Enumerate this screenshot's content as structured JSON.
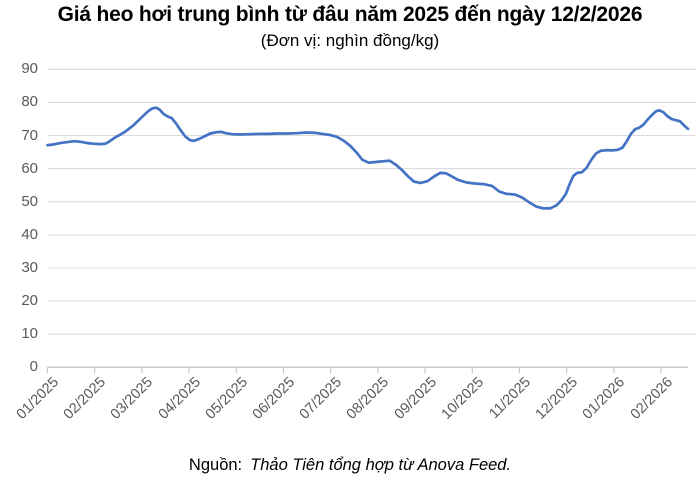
{
  "title": "Giá heo hơi trung bình từ đâu năm 2025 đến ngày 12/2/2026",
  "subtitle": "(Đơn vị: nghìn đồng/kg)",
  "source": {
    "prefix": "Nguồn:",
    "text": "Thảo Tiên tổng hợp từ Anova Feed."
  },
  "colors": {
    "line": "#4472C4",
    "grid": "#DCDCDC",
    "axis": "#C8C8C8",
    "axis_text": "#595959",
    "title_text": "#000000"
  },
  "chart_data": {
    "type": "line",
    "title": "Giá heo hơi trung bình từ đâu năm 2025 đến ngày 12/2/2026",
    "unit": "nghìn đồng/kg",
    "grid": "horizontal",
    "legend": "none",
    "ylim": [
      0,
      90
    ],
    "y_ticks": [
      0,
      10,
      20,
      30,
      40,
      50,
      60,
      70,
      80,
      90
    ],
    "x_tick_labels": [
      "01/2025",
      "02/2025",
      "03/2025",
      "04/2025",
      "05/2025",
      "06/2025",
      "07/2025",
      "08/2025",
      "09/2025",
      "10/2025",
      "11/2025",
      "12/2025",
      "01/2026",
      "02/2026"
    ],
    "x_scale_note": "x = months after the 01/2025 tick",
    "points": [
      [
        0.0,
        67.1
      ],
      [
        0.12,
        67.3
      ],
      [
        0.27,
        67.7
      ],
      [
        0.42,
        68.0
      ],
      [
        0.57,
        68.3
      ],
      [
        0.7,
        68.1
      ],
      [
        0.85,
        67.7
      ],
      [
        1.0,
        67.5
      ],
      [
        1.14,
        67.4
      ],
      [
        1.24,
        67.6
      ],
      [
        1.33,
        68.4
      ],
      [
        1.43,
        69.4
      ],
      [
        1.53,
        70.2
      ],
      [
        1.63,
        71.0
      ],
      [
        1.73,
        72.1
      ],
      [
        1.83,
        73.2
      ],
      [
        1.93,
        74.6
      ],
      [
        2.03,
        76.0
      ],
      [
        2.13,
        77.3
      ],
      [
        2.22,
        78.2
      ],
      [
        2.3,
        78.4
      ],
      [
        2.38,
        77.8
      ],
      [
        2.46,
        76.5
      ],
      [
        2.55,
        75.7
      ],
      [
        2.63,
        75.3
      ],
      [
        2.72,
        73.7
      ],
      [
        2.82,
        71.6
      ],
      [
        2.92,
        69.7
      ],
      [
        3.02,
        68.6
      ],
      [
        3.1,
        68.4
      ],
      [
        3.2,
        68.9
      ],
      [
        3.32,
        69.7
      ],
      [
        3.45,
        70.6
      ],
      [
        3.58,
        71.0
      ],
      [
        3.68,
        71.1
      ],
      [
        3.78,
        70.7
      ],
      [
        3.92,
        70.4
      ],
      [
        4.08,
        70.3
      ],
      [
        4.28,
        70.4
      ],
      [
        4.48,
        70.5
      ],
      [
        4.68,
        70.5
      ],
      [
        4.88,
        70.6
      ],
      [
        5.08,
        70.6
      ],
      [
        5.28,
        70.7
      ],
      [
        5.48,
        70.9
      ],
      [
        5.68,
        70.8
      ],
      [
        5.83,
        70.5
      ],
      [
        5.98,
        70.2
      ],
      [
        6.13,
        69.6
      ],
      [
        6.28,
        68.4
      ],
      [
        6.42,
        66.8
      ],
      [
        6.55,
        64.8
      ],
      [
        6.67,
        62.7
      ],
      [
        6.8,
        61.8
      ],
      [
        6.95,
        62.0
      ],
      [
        7.1,
        62.2
      ],
      [
        7.25,
        62.4
      ],
      [
        7.38,
        61.2
      ],
      [
        7.5,
        59.7
      ],
      [
        7.63,
        57.8
      ],
      [
        7.76,
        56.1
      ],
      [
        7.9,
        55.7
      ],
      [
        8.05,
        56.2
      ],
      [
        8.2,
        57.7
      ],
      [
        8.32,
        58.7
      ],
      [
        8.44,
        58.6
      ],
      [
        8.56,
        57.7
      ],
      [
        8.7,
        56.6
      ],
      [
        8.88,
        55.8
      ],
      [
        9.05,
        55.5
      ],
      [
        9.25,
        55.3
      ],
      [
        9.42,
        54.8
      ],
      [
        9.57,
        53.1
      ],
      [
        9.72,
        52.4
      ],
      [
        9.9,
        52.2
      ],
      [
        10.05,
        51.3
      ],
      [
        10.2,
        49.9
      ],
      [
        10.35,
        48.6
      ],
      [
        10.5,
        48.0
      ],
      [
        10.65,
        48.0
      ],
      [
        10.78,
        48.9
      ],
      [
        10.88,
        50.3
      ],
      [
        10.98,
        52.3
      ],
      [
        11.06,
        55.2
      ],
      [
        11.14,
        57.8
      ],
      [
        11.22,
        58.7
      ],
      [
        11.32,
        58.9
      ],
      [
        11.42,
        60.2
      ],
      [
        11.52,
        62.6
      ],
      [
        11.62,
        64.6
      ],
      [
        11.72,
        65.4
      ],
      [
        11.85,
        65.6
      ],
      [
        11.97,
        65.5
      ],
      [
        12.08,
        65.7
      ],
      [
        12.18,
        66.3
      ],
      [
        12.27,
        68.2
      ],
      [
        12.36,
        70.5
      ],
      [
        12.45,
        71.9
      ],
      [
        12.53,
        72.3
      ],
      [
        12.62,
        73.2
      ],
      [
        12.72,
        74.9
      ],
      [
        12.82,
        76.4
      ],
      [
        12.9,
        77.4
      ],
      [
        12.97,
        77.6
      ],
      [
        13.05,
        77.0
      ],
      [
        13.13,
        75.9
      ],
      [
        13.22,
        75.0
      ],
      [
        13.32,
        74.6
      ],
      [
        13.4,
        74.3
      ],
      [
        13.49,
        73.0
      ],
      [
        13.57,
        72.0
      ]
    ]
  }
}
